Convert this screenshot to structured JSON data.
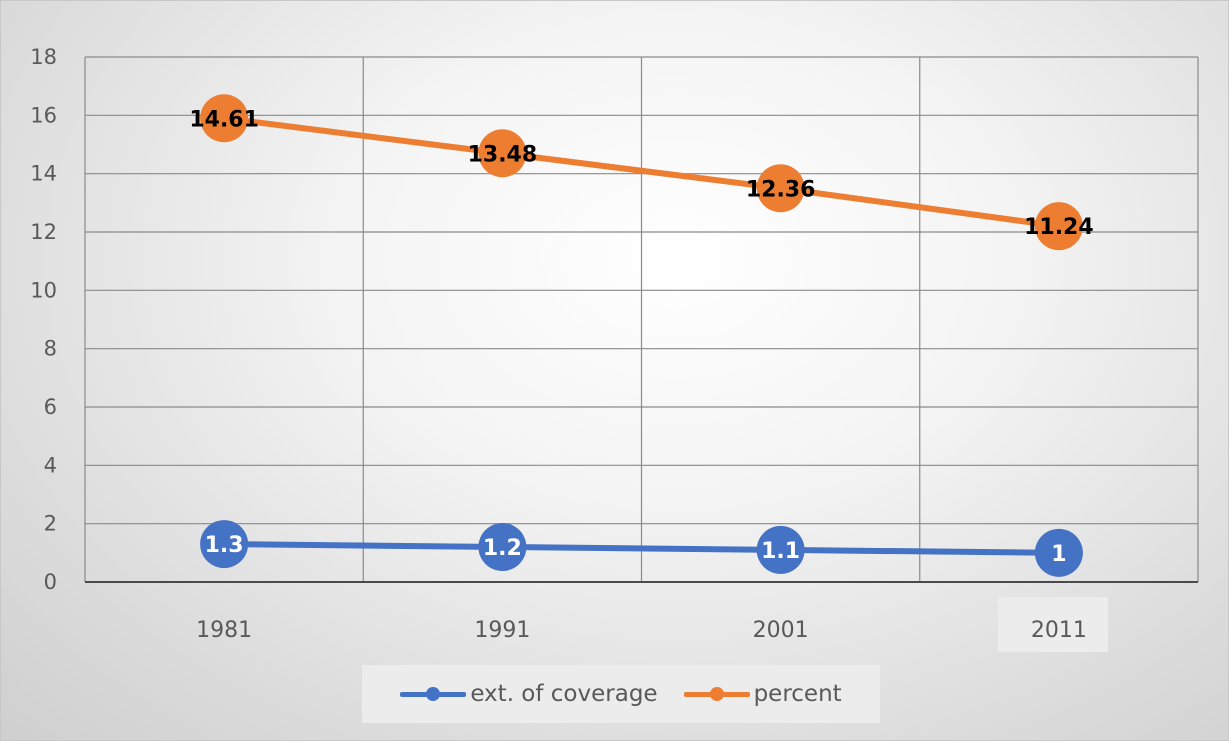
{
  "chart_data": {
    "type": "line",
    "title": "",
    "xlabel": "",
    "ylabel": "",
    "categories": [
      "1981",
      "1991",
      "2001",
      "2011"
    ],
    "ylim": [
      0,
      18
    ],
    "yticks": [
      0,
      2,
      4,
      6,
      8,
      10,
      12,
      14,
      16,
      18
    ],
    "grid": true,
    "legend_position": "bottom",
    "series": [
      {
        "name": "ext. of coverage",
        "values": [
          1.3,
          1.2,
          1.1,
          1.0
        ],
        "labels": [
          "1.3",
          "1.2",
          "1.1",
          "1"
        ],
        "color": "#4472C4",
        "label_color": "#ffffff"
      },
      {
        "name": "percent",
        "values": [
          15.9,
          14.7,
          13.5,
          12.2
        ],
        "labels": [
          "14.61",
          "13.48",
          "12.36",
          "11.24"
        ],
        "color": "#ED7D31",
        "label_color": "#000000"
      }
    ]
  }
}
